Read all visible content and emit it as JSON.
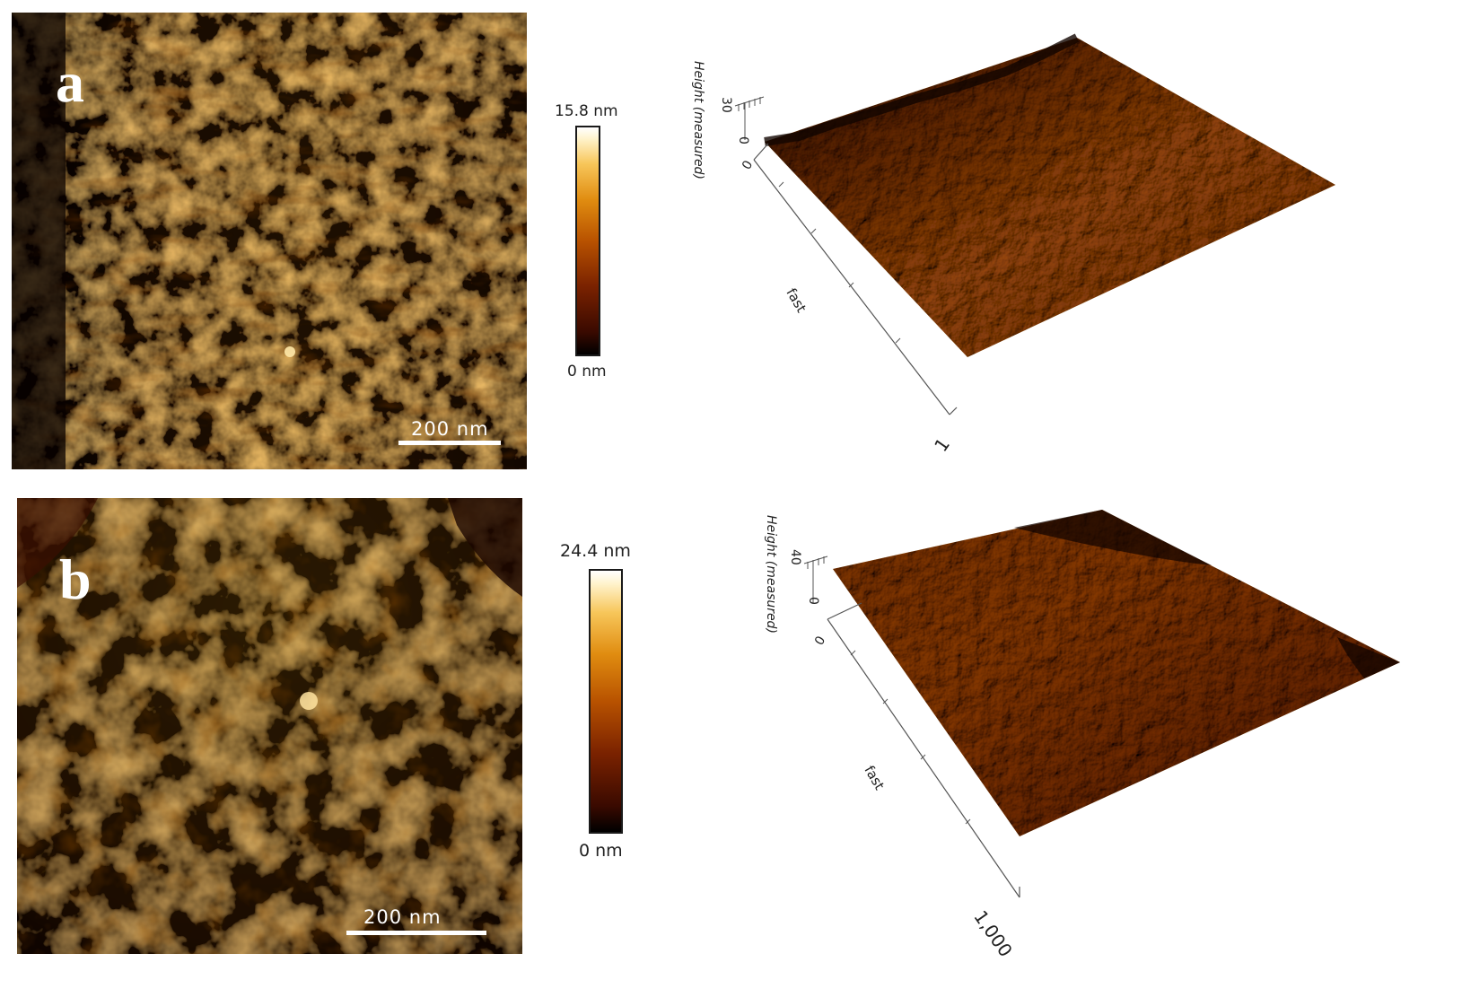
{
  "panels": {
    "a": {
      "letter": "a",
      "scalebar": "200 nm",
      "colorbar_max": "15.8 nm",
      "colorbar_min": "0 nm",
      "surface_axis_title": "Height (measured)",
      "surface_z_tick": "30",
      "surface_z_zero": "0",
      "surface_base_zero": "0",
      "surface_axis_fast": "fast",
      "surface_axis_end": "1"
    },
    "b": {
      "letter": "b",
      "scalebar": "200 nm",
      "colorbar_max": "24.4 nm",
      "colorbar_min": "0 nm",
      "surface_axis_title": "Height (measured)",
      "surface_z_tick": "40",
      "surface_z_zero": "0",
      "surface_base_zero": "0",
      "surface_axis_fast": "fast",
      "surface_axis_end": "1,000"
    }
  },
  "colors": {
    "afm_dark": "#1a0500",
    "afm_mid": "#b85a08",
    "afm_light": "#f3b44a"
  }
}
